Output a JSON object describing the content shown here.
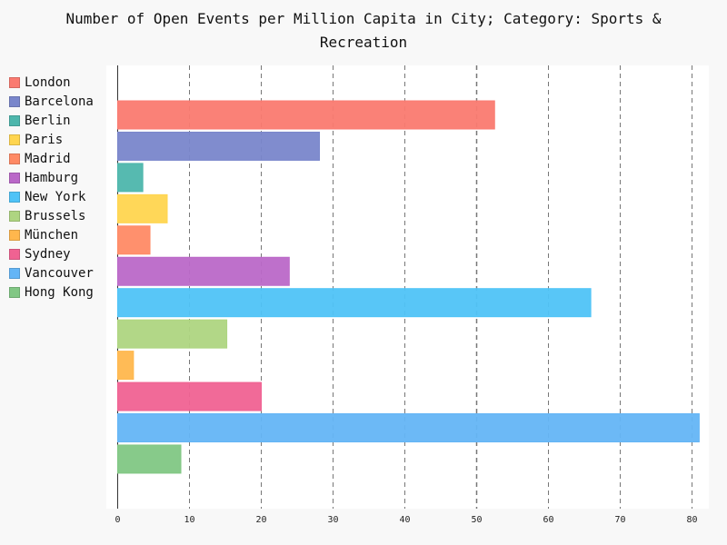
{
  "chart_data": {
    "type": "bar",
    "orientation": "horizontal",
    "title_lines": [
      "Number of Open Events per Million Capita in City; Category: Sports &",
      "Recreation"
    ],
    "categories": [
      "London",
      "Barcelona",
      "Berlin",
      "Paris",
      "Madrid",
      "Hamburg",
      "New York",
      "Brussels",
      "München",
      "Sydney",
      "Vancouver",
      "Hong Kong"
    ],
    "values": [
      52.5,
      28.1,
      3.5,
      6.9,
      4.5,
      23.9,
      65.9,
      15.2,
      2.2,
      20.0,
      81.0,
      8.8
    ],
    "colors": [
      "#fa7a70",
      "#7986cb",
      "#4db6ac",
      "#ffd54f",
      "#ff8a65",
      "#ba68c8",
      "#4fc3f7",
      "#aed581",
      "#ffb74d",
      "#f06292",
      "#64b5f6",
      "#81c784"
    ],
    "xlim": [
      0,
      82.4
    ],
    "xticks": [
      0,
      10,
      20,
      30,
      40,
      50,
      60,
      70,
      80
    ],
    "grid": "vertical-dashed",
    "legend_placement": "left",
    "xlabel": "",
    "ylabel": ""
  }
}
